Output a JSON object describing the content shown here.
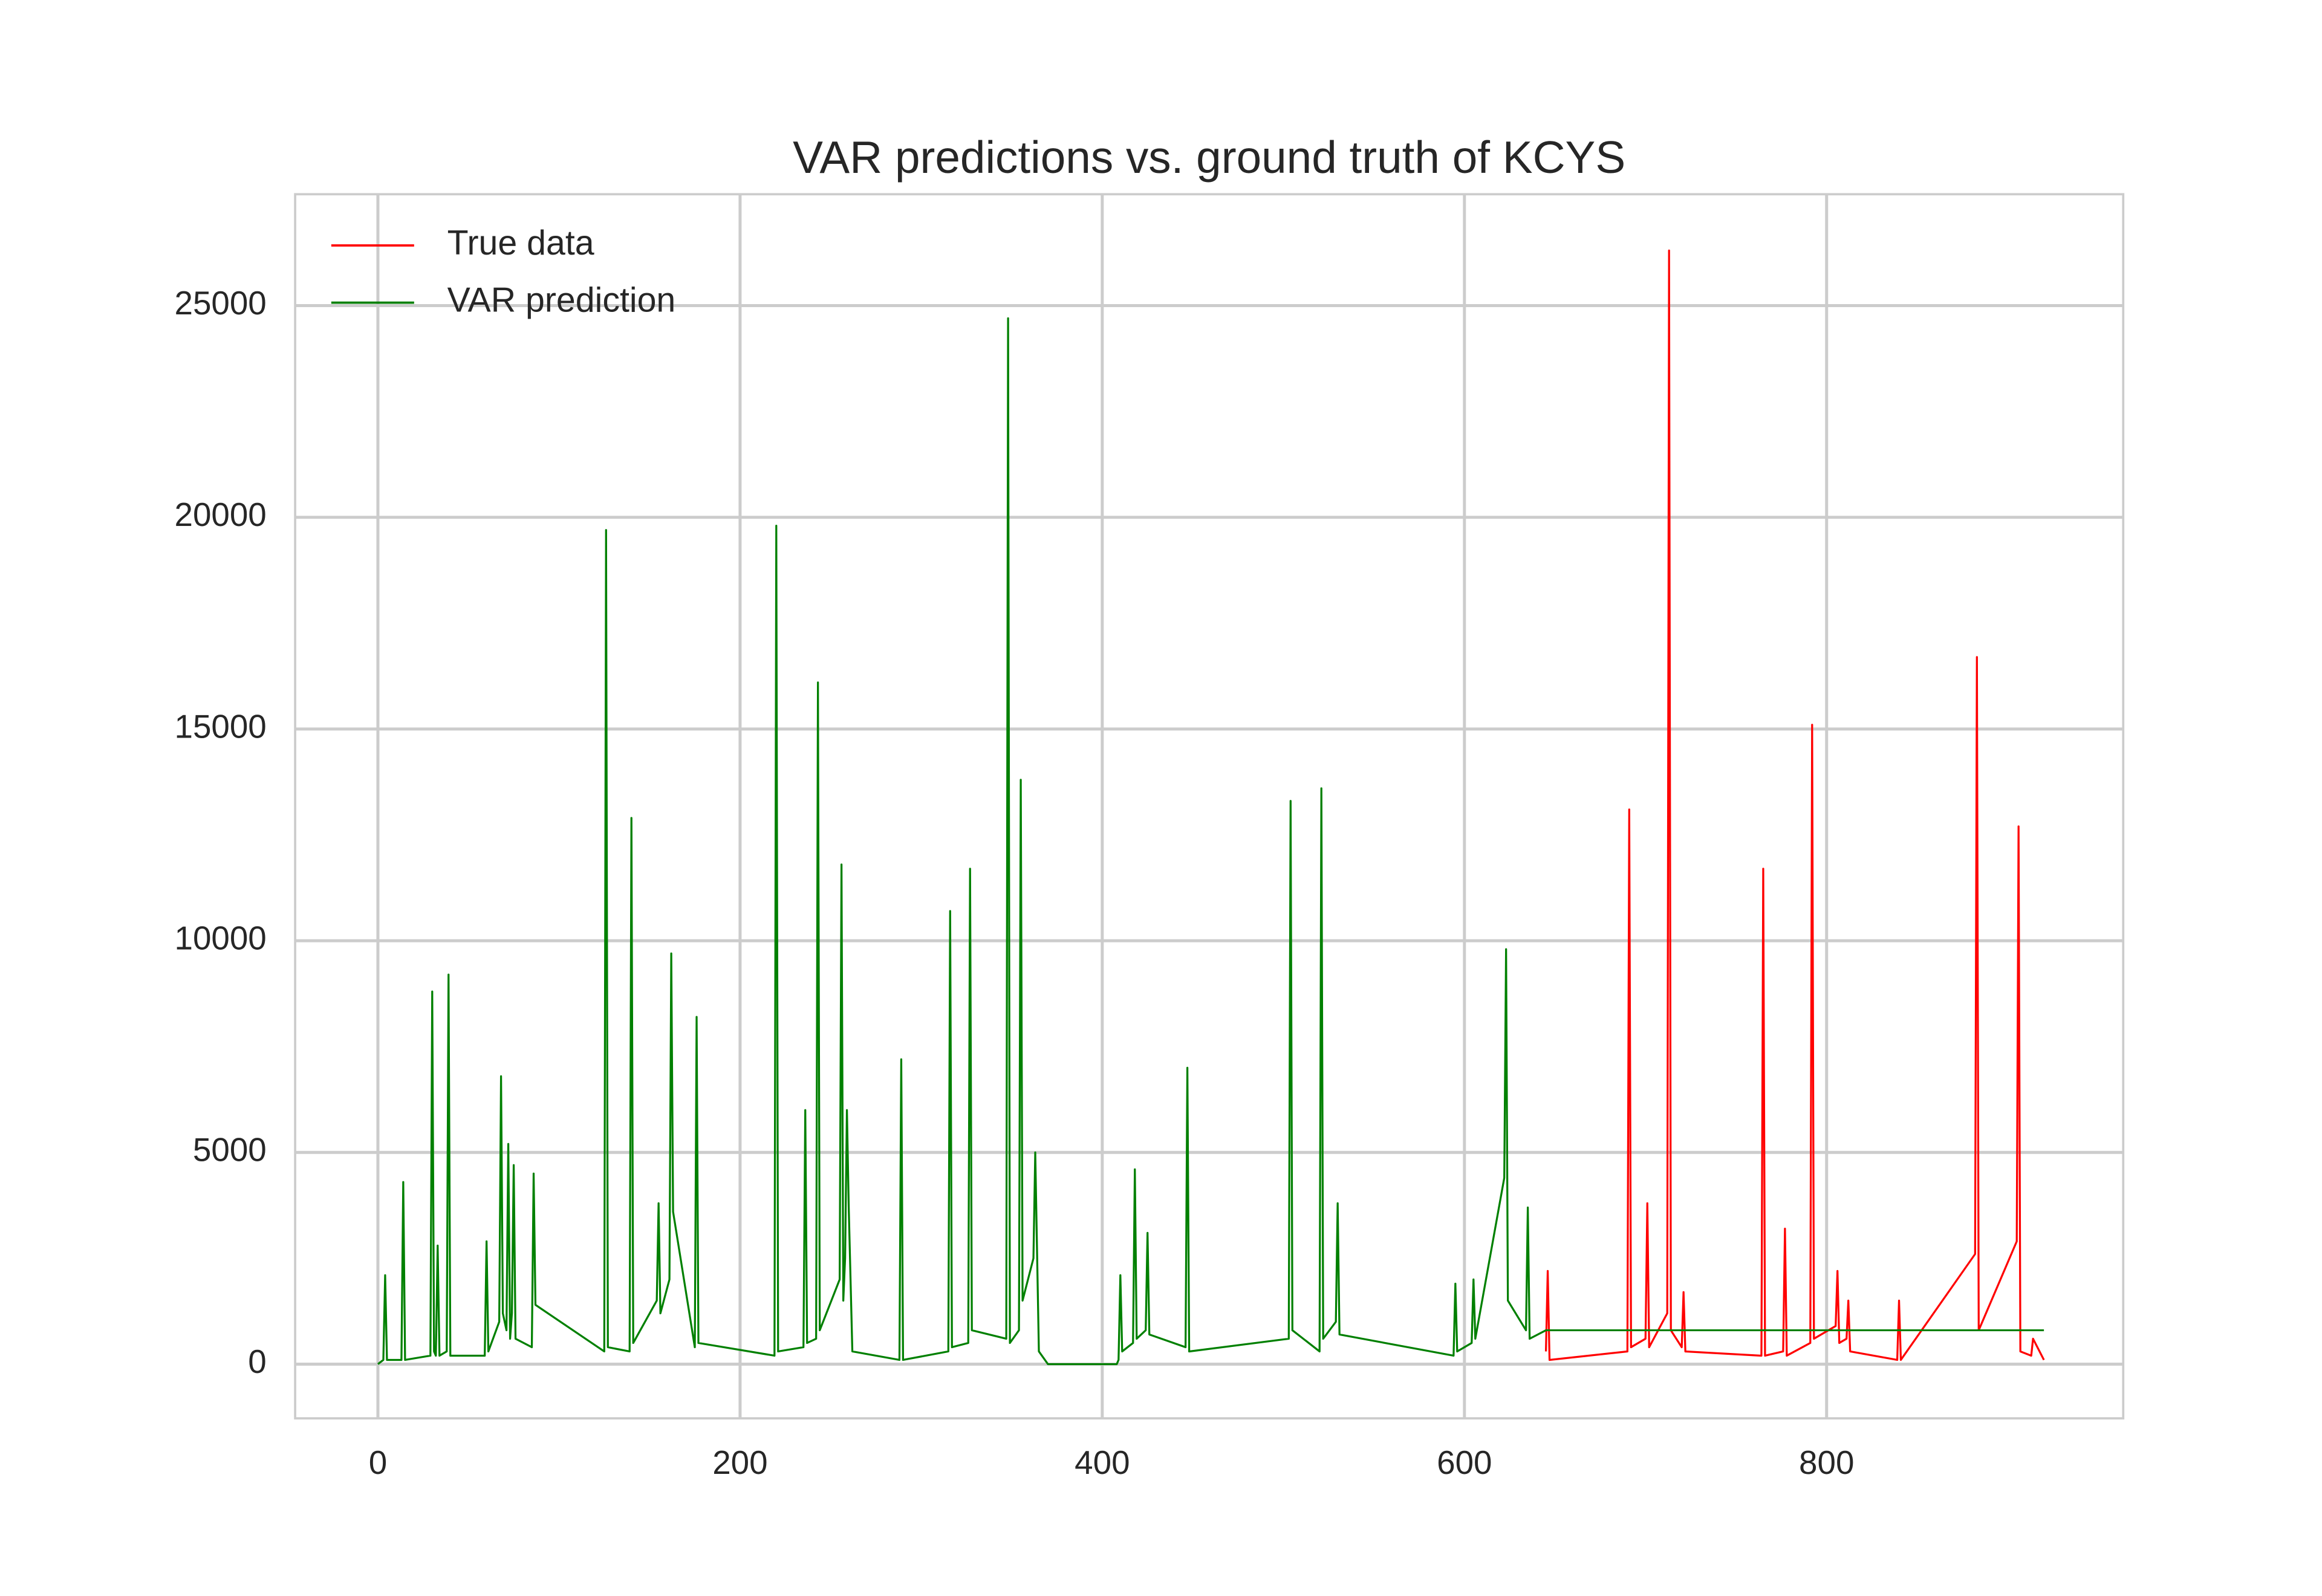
{
  "chart_data": {
    "type": "line",
    "title": "VAR predictions vs. ground truth of KCYS",
    "xlim": [
      -45.7,
      963.8
    ],
    "xticks": [
      0,
      200,
      400,
      600,
      800
    ],
    "ylim": [
      -1280,
      27630
    ],
    "yticks": [
      0,
      5000,
      10000,
      15000,
      20000,
      25000
    ],
    "grid": true,
    "legend": "upper left",
    "series": [
      {
        "name": "True data",
        "color": "#ff0000",
        "x": [
          645,
          646,
          647,
          690,
          691,
          692,
          700,
          701,
          702,
          712,
          713,
          714,
          720,
          721,
          722,
          764,
          765,
          766,
          776,
          777,
          778,
          791,
          792,
          793,
          805,
          806,
          807,
          811,
          812,
          813,
          839,
          840,
          841,
          882,
          883,
          884,
          905,
          906,
          907,
          913,
          914,
          920
        ],
        "values": [
          300,
          2200,
          100,
          300,
          13100,
          400,
          600,
          3800,
          400,
          1200,
          26300,
          800,
          400,
          1700,
          300,
          200,
          11700,
          200,
          300,
          3200,
          200,
          500,
          15100,
          600,
          900,
          2200,
          500,
          600,
          1500,
          300,
          100,
          1500,
          100,
          2600,
          16700,
          800,
          2900,
          12700,
          300,
          200,
          600,
          100
        ]
      },
      {
        "name": "VAR prediction",
        "color": "#008000",
        "x": [
          0,
          3,
          4,
          5,
          13,
          14,
          15,
          29,
          30,
          31,
          32,
          33,
          34,
          38,
          39,
          40,
          59,
          60,
          61,
          67,
          68,
          69,
          71,
          72,
          73,
          74,
          75,
          76,
          85,
          86,
          87,
          125,
          126,
          127,
          139,
          140,
          141,
          154,
          155,
          156,
          161,
          162,
          163,
          175,
          176,
          177,
          219,
          220,
          221,
          235,
          236,
          237,
          242,
          243,
          244,
          255,
          256,
          257,
          258,
          259,
          260,
          262,
          288,
          289,
          290,
          315,
          316,
          317,
          326,
          327,
          328,
          347,
          348,
          349,
          354,
          355,
          356,
          362,
          363,
          365,
          370,
          408,
          409,
          410,
          411,
          417,
          418,
          419,
          424,
          425,
          426,
          446,
          447,
          448,
          503,
          504,
          505,
          520,
          521,
          522,
          529,
          530,
          531,
          594,
          595,
          596,
          604,
          605,
          606,
          622,
          623,
          624,
          634,
          635,
          636,
          645,
          920
        ],
        "values": [
          0,
          100,
          2100,
          100,
          100,
          4300,
          100,
          200,
          8800,
          300,
          200,
          2800,
          200,
          300,
          9200,
          200,
          200,
          2900,
          300,
          1000,
          6800,
          1200,
          800,
          5200,
          600,
          1200,
          4700,
          600,
          400,
          4500,
          1400,
          300,
          19700,
          400,
          300,
          12900,
          500,
          1500,
          3800,
          1200,
          2000,
          9700,
          3600,
          400,
          8200,
          500,
          200,
          19800,
          300,
          400,
          6000,
          500,
          600,
          16100,
          800,
          2000,
          11800,
          1500,
          2500,
          6000,
          3700,
          300,
          100,
          7200,
          100,
          300,
          10700,
          400,
          500,
          11700,
          800,
          600,
          24700,
          500,
          800,
          13800,
          1500,
          2500,
          5000,
          300,
          0,
          0,
          100,
          2100,
          300,
          500,
          4600,
          600,
          800,
          3100,
          700,
          400,
          7000,
          300,
          600,
          13300,
          800,
          300,
          13600,
          600,
          1000,
          3800,
          700,
          200,
          1900,
          300,
          500,
          2000,
          600,
          4400,
          9800,
          1500,
          800,
          3700,
          600,
          800,
          800
        ]
      }
    ]
  }
}
